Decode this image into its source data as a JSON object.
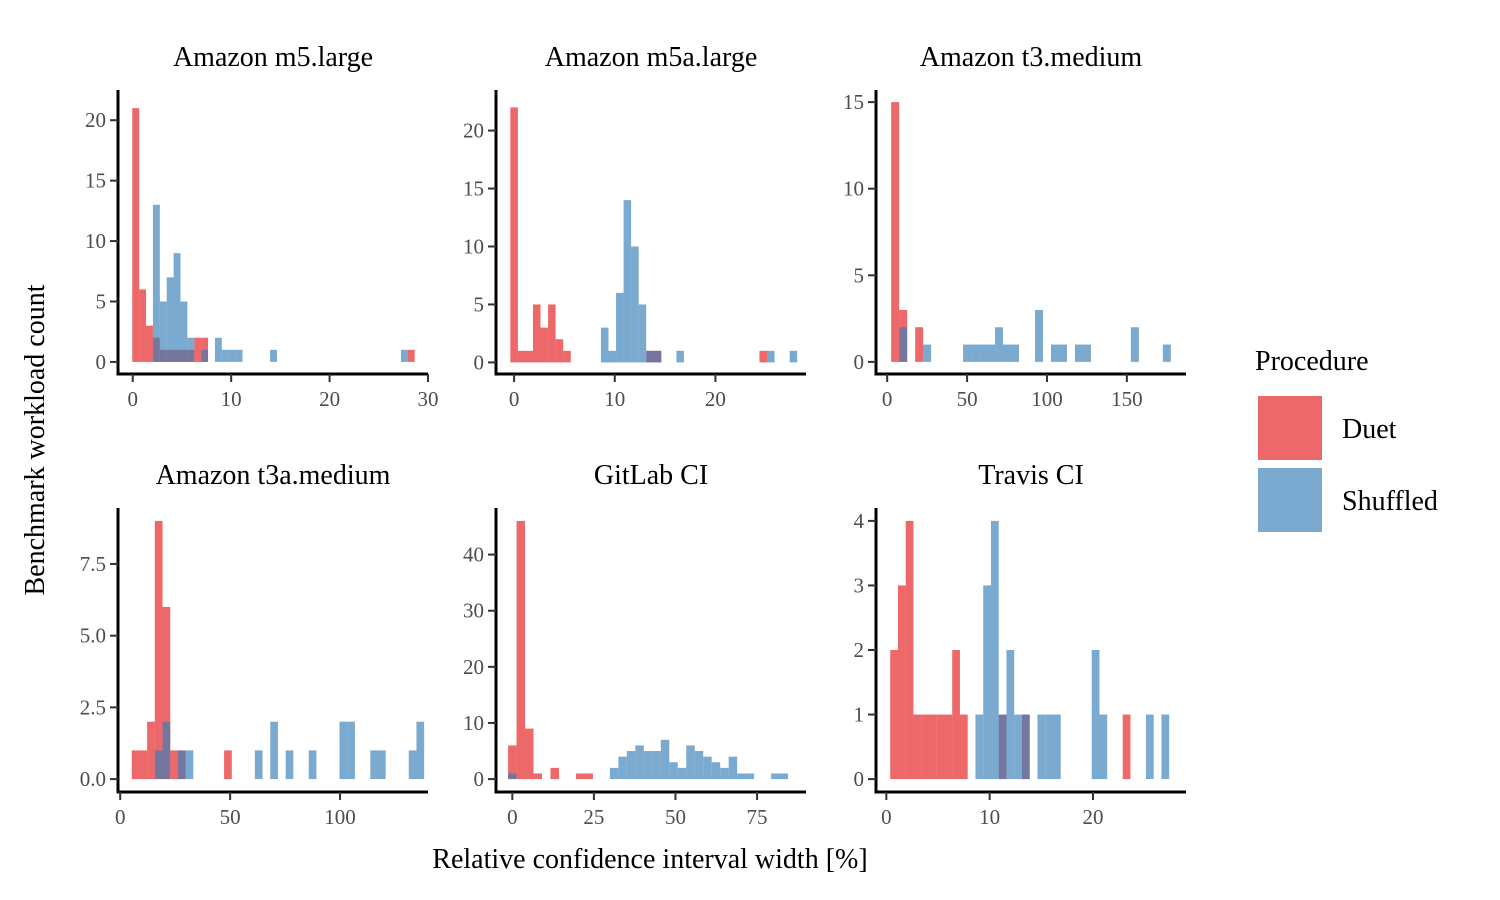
{
  "colors": {
    "Duet": "#E41A1C",
    "Shuffled": "#377EB8",
    "opacity": 0.66
  },
  "chart_data": {
    "type": "bar",
    "x_title": "Relative confidence interval width [%]",
    "y_title": "Benchmark workload count",
    "legend": {
      "title": "Procedure",
      "position": "right",
      "entries": [
        "Duet",
        "Shuffled"
      ]
    },
    "grid": false,
    "panels": [
      {
        "title": "Amazon m5.large",
        "xlim": [
          -1.5,
          30
        ],
        "ylim": [
          -1,
          22.5
        ],
        "xticks": [
          0,
          10,
          20,
          30
        ],
        "yticks": [
          0,
          5,
          10,
          15,
          20
        ],
        "ytick_labels": [
          "0",
          "5",
          "10",
          "15",
          "20"
        ],
        "binwidth": 0.7,
        "series": [
          {
            "name": "Duet",
            "bins": [
              [
                0.3,
                21
              ],
              [
                1.0,
                6
              ],
              [
                1.7,
                3
              ],
              [
                2.4,
                2
              ],
              [
                3.1,
                1
              ],
              [
                3.8,
                1
              ],
              [
                4.5,
                1
              ],
              [
                5.2,
                1
              ],
              [
                5.9,
                1
              ],
              [
                6.6,
                2
              ],
              [
                7.3,
                2
              ],
              [
                28.3,
                1
              ]
            ]
          },
          {
            "name": "Shuffled",
            "bins": [
              [
                2.4,
                13
              ],
              [
                3.1,
                5
              ],
              [
                3.8,
                7
              ],
              [
                4.5,
                9
              ],
              [
                5.2,
                5
              ],
              [
                5.9,
                2
              ],
              [
                7.3,
                1
              ],
              [
                8.7,
                2
              ],
              [
                9.4,
                1
              ],
              [
                10.1,
                1
              ],
              [
                10.8,
                1
              ],
              [
                14.3,
                1
              ],
              [
                27.6,
                1
              ]
            ]
          }
        ]
      },
      {
        "title": "Amazon m5a.large",
        "xlim": [
          -1.8,
          29
        ],
        "ylim": [
          -1,
          23.5
        ],
        "xticks": [
          0,
          10,
          20
        ],
        "yticks": [
          0,
          5,
          10,
          15,
          20
        ],
        "ytick_labels": [
          "0",
          "5",
          "10",
          "15",
          "20"
        ],
        "binwidth": 0.75,
        "series": [
          {
            "name": "Duet",
            "bins": [
              [
                0.0,
                22
              ],
              [
                0.75,
                1
              ],
              [
                1.5,
                1
              ],
              [
                2.25,
                5
              ],
              [
                3.0,
                3
              ],
              [
                3.75,
                5
              ],
              [
                4.5,
                2
              ],
              [
                5.25,
                1
              ],
              [
                13.5,
                1
              ],
              [
                14.25,
                1
              ],
              [
                24.75,
                1
              ]
            ]
          },
          {
            "name": "Shuffled",
            "bins": [
              [
                9.0,
                3
              ],
              [
                9.75,
                1
              ],
              [
                10.5,
                6
              ],
              [
                11.25,
                14
              ],
              [
                12.0,
                10
              ],
              [
                12.75,
                5
              ],
              [
                13.5,
                1
              ],
              [
                14.25,
                1
              ],
              [
                16.5,
                1
              ],
              [
                25.5,
                1
              ],
              [
                27.75,
                1
              ]
            ]
          }
        ]
      },
      {
        "title": "Amazon t3.medium",
        "xlim": [
          -7,
          187
        ],
        "ylim": [
          -0.7,
          15.7
        ],
        "xticks": [
          0,
          50,
          100,
          150
        ],
        "yticks": [
          0,
          5,
          10,
          15
        ],
        "ytick_labels": [
          "0",
          "5",
          "10",
          "15"
        ],
        "binwidth": 5,
        "series": [
          {
            "name": "Duet",
            "bins": [
              [
                5,
                15
              ],
              [
                10,
                3
              ],
              [
                20,
                2
              ]
            ]
          },
          {
            "name": "Shuffled",
            "bins": [
              [
                10,
                2
              ],
              [
                25,
                1
              ],
              [
                50,
                1
              ],
              [
                55,
                1
              ],
              [
                60,
                1
              ],
              [
                65,
                1
              ],
              [
                70,
                2
              ],
              [
                75,
                1
              ],
              [
                80,
                1
              ],
              [
                95,
                3
              ],
              [
                105,
                1
              ],
              [
                110,
                1
              ],
              [
                120,
                1
              ],
              [
                125,
                1
              ],
              [
                155,
                2
              ],
              [
                175,
                1
              ]
            ]
          }
        ]
      },
      {
        "title": "Amazon t3a.medium",
        "xlim": [
          -1,
          140
        ],
        "ylim": [
          -0.45,
          9.45
        ],
        "xticks": [
          0,
          50,
          100
        ],
        "yticks": [
          0,
          2.5,
          5,
          7.5
        ],
        "ytick_labels": [
          "0.0",
          "2.5",
          "5.0",
          "7.5"
        ],
        "binwidth": 3.5,
        "series": [
          {
            "name": "Duet",
            "bins": [
              [
                7,
                1
              ],
              [
                10.5,
                1
              ],
              [
                14,
                2
              ],
              [
                17.5,
                9
              ],
              [
                21,
                6
              ],
              [
                24.5,
                1
              ],
              [
                28,
                1
              ],
              [
                49,
                1
              ]
            ]
          },
          {
            "name": "Shuffled",
            "bins": [
              [
                17.5,
                1
              ],
              [
                21,
                2
              ],
              [
                28,
                1
              ],
              [
                31.5,
                1
              ],
              [
                63,
                1
              ],
              [
                70,
                2
              ],
              [
                77,
                1
              ],
              [
                87.5,
                1
              ],
              [
                101.5,
                2
              ],
              [
                105,
                2
              ],
              [
                115.5,
                1
              ],
              [
                119,
                1
              ],
              [
                133,
                1
              ],
              [
                136.5,
                2
              ]
            ]
          }
        ]
      },
      {
        "title": "GitLab CI",
        "xlim": [
          -5,
          90
        ],
        "ylim": [
          -2.3,
          48.3
        ],
        "xticks": [
          0,
          25,
          50,
          75
        ],
        "yticks": [
          0,
          10,
          20,
          30,
          40
        ],
        "ytick_labels": [
          "0",
          "10",
          "20",
          "30",
          "40"
        ],
        "binwidth": 2.6,
        "series": [
          {
            "name": "Duet",
            "bins": [
              [
                0,
                6
              ],
              [
                2.6,
                46
              ],
              [
                5.2,
                9
              ],
              [
                7.8,
                1
              ],
              [
                13,
                2
              ],
              [
                20.8,
                1
              ],
              [
                23.4,
                1
              ]
            ]
          },
          {
            "name": "Shuffled",
            "bins": [
              [
                0,
                1
              ],
              [
                31.2,
                2
              ],
              [
                33.8,
                4
              ],
              [
                36.4,
                5
              ],
              [
                39,
                6
              ],
              [
                41.6,
                5
              ],
              [
                44.2,
                5
              ],
              [
                46.8,
                7
              ],
              [
                49.4,
                3
              ],
              [
                52,
                2
              ],
              [
                54.6,
                6
              ],
              [
                57.2,
                5
              ],
              [
                59.8,
                4
              ],
              [
                62.4,
                3
              ],
              [
                65,
                2
              ],
              [
                67.6,
                4
              ],
              [
                70.2,
                1
              ],
              [
                72.8,
                1
              ],
              [
                80.6,
                1
              ],
              [
                83.2,
                1
              ]
            ]
          }
        ]
      },
      {
        "title": "Travis CI",
        "xlim": [
          -1,
          29
        ],
        "ylim": [
          -0.2,
          4.2
        ],
        "xticks": [
          0,
          10,
          20
        ],
        "yticks": [
          0,
          1,
          2,
          3,
          4
        ],
        "ytick_labels": [
          "0",
          "1",
          "2",
          "3",
          "4"
        ],
        "binwidth": 0.75,
        "series": [
          {
            "name": "Duet",
            "bins": [
              [
                0.75,
                2
              ],
              [
                1.5,
                3
              ],
              [
                2.25,
                4
              ],
              [
                3.0,
                1
              ],
              [
                3.75,
                1
              ],
              [
                4.5,
                1
              ],
              [
                5.25,
                1
              ],
              [
                6.0,
                1
              ],
              [
                6.75,
                2
              ],
              [
                7.5,
                1
              ],
              [
                11.25,
                1
              ],
              [
                13.5,
                1
              ],
              [
                23.25,
                1
              ]
            ]
          },
          {
            "name": "Shuffled",
            "bins": [
              [
                9.0,
                1
              ],
              [
                9.75,
                3
              ],
              [
                10.5,
                4
              ],
              [
                11.25,
                1
              ],
              [
                12.0,
                2
              ],
              [
                12.75,
                1
              ],
              [
                13.5,
                1
              ],
              [
                15.0,
                1
              ],
              [
                15.75,
                1
              ],
              [
                16.5,
                1
              ],
              [
                20.25,
                2
              ],
              [
                21.0,
                1
              ],
              [
                25.5,
                1
              ],
              [
                27.0,
                1
              ]
            ]
          }
        ]
      }
    ]
  }
}
